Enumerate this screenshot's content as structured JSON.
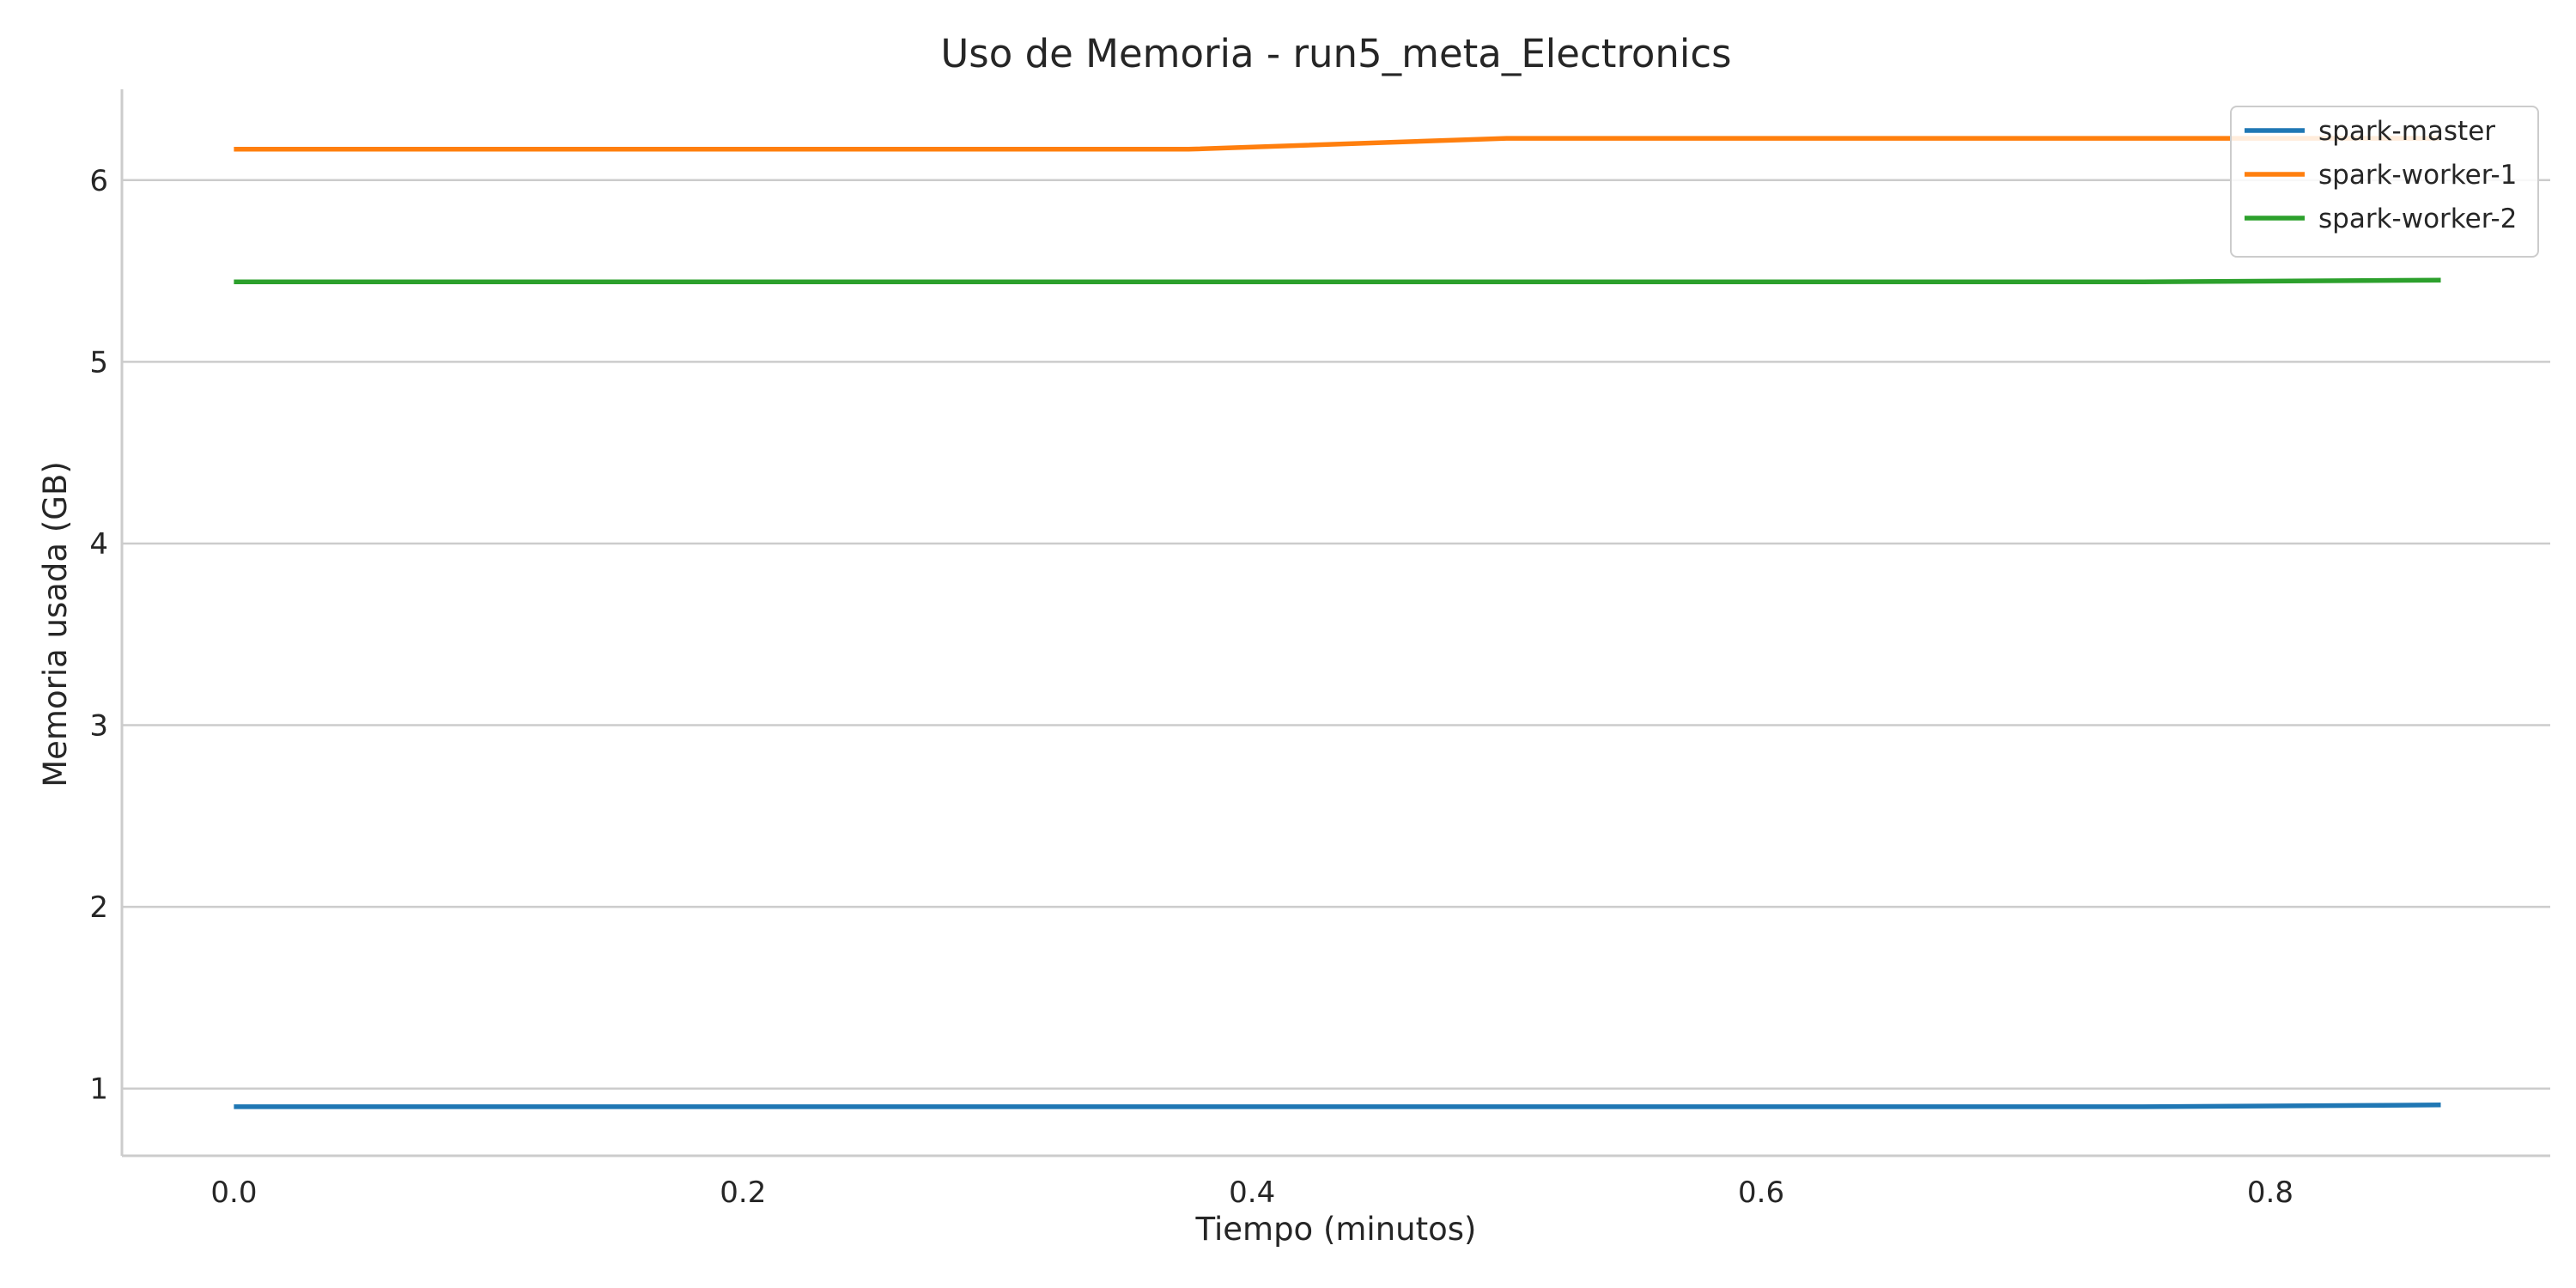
{
  "chart_data": {
    "type": "line",
    "title": "Uso de Memoria - run5_meta_Electronics",
    "xlabel": "Tiempo (minutos)",
    "ylabel": "Memoria usada (GB)",
    "xlim": [
      -0.044,
      0.91
    ],
    "ylim": [
      0.63,
      6.5
    ],
    "xticks": [
      0.0,
      0.2,
      0.4,
      0.6,
      0.8
    ],
    "xtick_labels": [
      "0.0",
      "0.2",
      "0.4",
      "0.6",
      "0.8"
    ],
    "yticks": [
      1,
      2,
      3,
      4,
      5,
      6
    ],
    "ytick_labels": [
      "1",
      "2",
      "3",
      "4",
      "5",
      "6"
    ],
    "grid": "horizontal",
    "legend_position": "top-right",
    "series": [
      {
        "name": "spark-master",
        "color": "#1f77b4",
        "x": [
          0.0,
          0.125,
          0.25,
          0.375,
          0.5,
          0.625,
          0.75,
          0.867
        ],
        "y": [
          0.9,
          0.9,
          0.9,
          0.9,
          0.9,
          0.9,
          0.9,
          0.91
        ]
      },
      {
        "name": "spark-worker-1",
        "color": "#ff7f0e",
        "x": [
          0.0,
          0.125,
          0.25,
          0.375,
          0.5,
          0.625,
          0.75,
          0.867
        ],
        "y": [
          6.17,
          6.17,
          6.17,
          6.17,
          6.23,
          6.23,
          6.23,
          6.23
        ]
      },
      {
        "name": "spark-worker-2",
        "color": "#2ca02c",
        "x": [
          0.0,
          0.125,
          0.25,
          0.375,
          0.5,
          0.625,
          0.75,
          0.867
        ],
        "y": [
          5.44,
          5.44,
          5.44,
          5.44,
          5.44,
          5.44,
          5.44,
          5.45
        ]
      }
    ]
  }
}
